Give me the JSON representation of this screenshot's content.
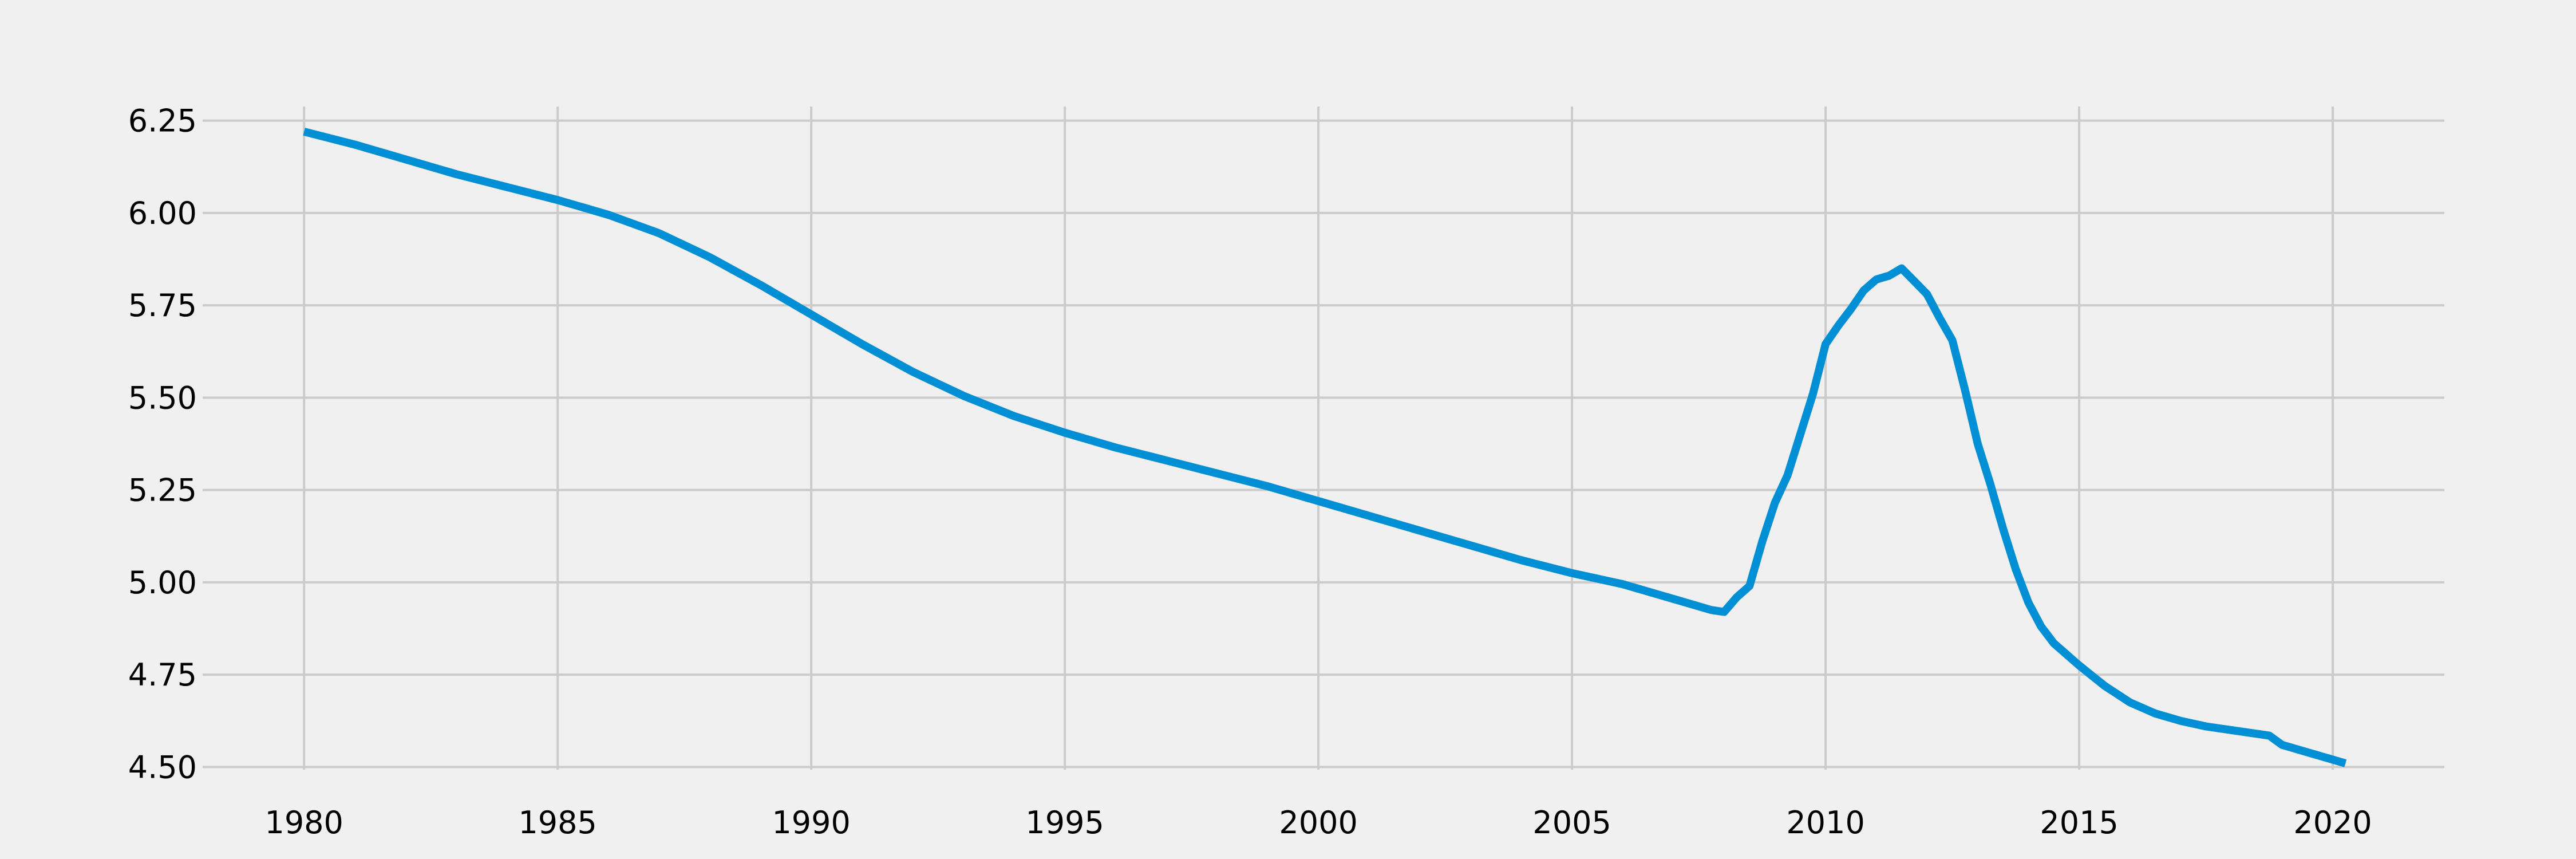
{
  "chart_data": {
    "type": "line",
    "title": "",
    "xlabel": "",
    "ylabel": "",
    "xlim": [
      1978.0,
      2022.2
    ],
    "ylim": [
      4.465,
      6.285
    ],
    "grid": true,
    "x_ticks": [
      1980,
      1985,
      1990,
      1995,
      2000,
      2005,
      2010,
      2015,
      2020
    ],
    "y_ticks": [
      4.5,
      4.75,
      5.0,
      5.25,
      5.5,
      5.75,
      6.0,
      6.25
    ],
    "y_tick_labels": [
      "4.50",
      "4.75",
      "5.00",
      "5.25",
      "5.50",
      "5.75",
      "6.00",
      "6.25"
    ],
    "series": [
      {
        "color": "#008fd5",
        "x": [
          1980.0,
          1981.0,
          1982.0,
          1983.0,
          1984.0,
          1985.0,
          1986.0,
          1987.0,
          1988.0,
          1989.0,
          1990.0,
          1991.0,
          1992.0,
          1993.0,
          1994.0,
          1995.0,
          1996.0,
          1997.0,
          1998.0,
          1999.0,
          2000.0,
          2001.0,
          2002.0,
          2003.0,
          2004.0,
          2005.0,
          2006.0,
          2007.0,
          2007.75,
          2008.0,
          2008.25,
          2008.5,
          2008.75,
          2009.0,
          2009.25,
          2009.5,
          2009.75,
          2010.0,
          2010.25,
          2010.5,
          2010.75,
          2011.0,
          2011.25,
          2011.5,
          2011.75,
          2012.0,
          2012.25,
          2012.5,
          2012.75,
          2013.0,
          2013.25,
          2013.5,
          2013.75,
          2014.0,
          2014.25,
          2014.5,
          2014.75,
          2015.0,
          2015.5,
          2016.0,
          2016.5,
          2017.0,
          2017.5,
          2018.0,
          2018.75,
          2019.0,
          2019.5,
          2020.0,
          2020.25
        ],
        "y": [
          6.22,
          6.185,
          6.145,
          6.105,
          6.07,
          6.035,
          5.995,
          5.945,
          5.88,
          5.805,
          5.725,
          5.645,
          5.57,
          5.505,
          5.45,
          5.405,
          5.365,
          5.33,
          5.295,
          5.26,
          5.22,
          5.18,
          5.14,
          5.1,
          5.06,
          5.025,
          4.995,
          4.955,
          4.925,
          4.92,
          4.96,
          4.99,
          5.11,
          5.215,
          5.29,
          5.4,
          5.51,
          5.645,
          5.695,
          5.74,
          5.79,
          5.82,
          5.83,
          5.85,
          5.815,
          5.78,
          5.715,
          5.655,
          5.52,
          5.375,
          5.265,
          5.145,
          5.035,
          4.945,
          4.88,
          4.835,
          4.805,
          4.775,
          4.72,
          4.675,
          4.645,
          4.625,
          4.61,
          4.6,
          4.585,
          4.56,
          4.54,
          4.52,
          4.51
        ]
      }
    ]
  }
}
